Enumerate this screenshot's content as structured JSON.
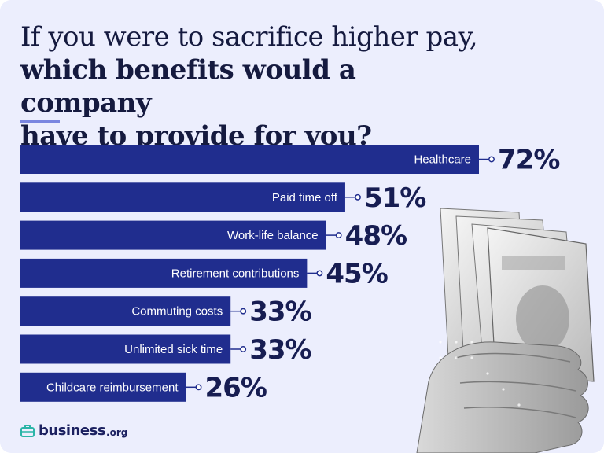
{
  "header": {
    "title_line1": "If you were to sacrifice higher pay,",
    "title_line2": "which benefits would a company",
    "title_line3": "have to provide for you?"
  },
  "brand": {
    "name": "business",
    "suffix": ".org",
    "icon": "briefcase-icon",
    "color": "#1b2060"
  },
  "colors": {
    "background": "#eceefd",
    "bar": "#202d8e",
    "value_text": "#171d52",
    "accent": "#7a86e0"
  },
  "chart_data": {
    "type": "bar",
    "orientation": "horizontal",
    "title": "If you were to sacrifice higher pay, which benefits would a company have to provide for you?",
    "categories": [
      "Healthcare",
      "Paid time off",
      "Work-life balance",
      "Retirement contributions",
      "Commuting costs",
      "Unlimited sick time",
      "Childcare reimbursement"
    ],
    "values": [
      72,
      51,
      48,
      45,
      33,
      33,
      26
    ],
    "value_labels": [
      "72%",
      "51%",
      "48%",
      "45%",
      "33%",
      "33%",
      "26%"
    ],
    "unit": "%",
    "xlim": [
      0,
      100
    ],
    "grid": false,
    "legend": "none"
  }
}
